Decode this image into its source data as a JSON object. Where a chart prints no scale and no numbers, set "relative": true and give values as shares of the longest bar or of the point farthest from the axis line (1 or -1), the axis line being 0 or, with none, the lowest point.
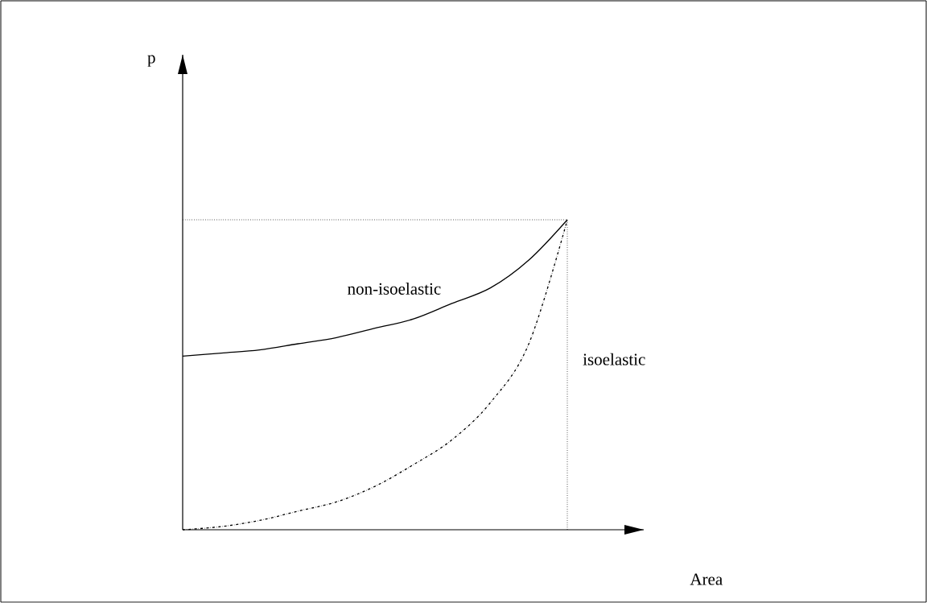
{
  "chart_data": {
    "type": "line",
    "relative": true,
    "categories": [
      null,
      null,
      null,
      null,
      null,
      null,
      null,
      null,
      null,
      null,
      null
    ],
    "series": [
      {
        "name": "non-isoelastic",
        "color": "#000000",
        "line_style": "solid",
        "values": [
          0.56,
          0.57,
          0.58,
          0.6,
          0.62,
          0.65,
          0.68,
          0.73,
          0.78,
          0.87,
          1.0
        ]
      },
      {
        "color": "#000000",
        "line_style": "dashdot",
        "values": [
          0,
          0.01,
          0.03,
          0.06,
          0.09,
          0.14,
          0.21,
          0.29,
          0.41,
          0.6,
          1.0
        ]
      }
    ],
    "ref_lines": [
      {
        "axis": "y",
        "value": 1.0,
        "line_style": "dotted",
        "color": "#000000"
      }
    ],
    "annotations": [
      "p",
      "Area",
      "isoelastic"
    ],
    "marker": "none"
  }
}
